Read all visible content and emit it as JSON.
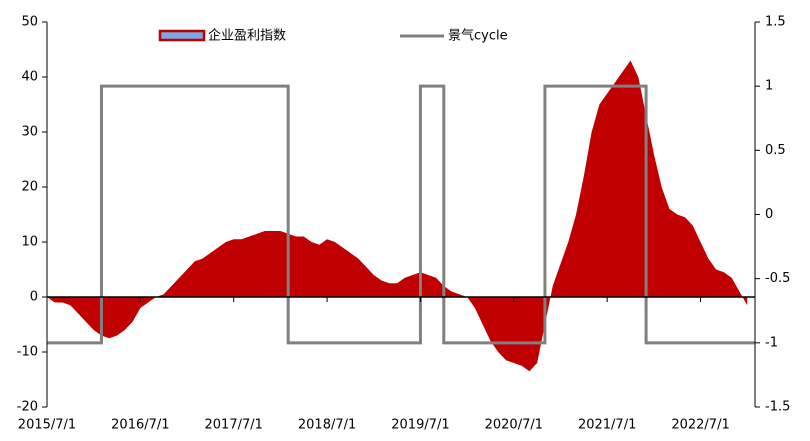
{
  "chart_data": {
    "type": "area_step_combo",
    "ylim": [
      -20,
      50
    ],
    "yticks": [
      -20,
      -10,
      0,
      10,
      20,
      30,
      40,
      50
    ],
    "y2lim": [
      -1.5,
      1.5
    ],
    "y2ticks": [
      -1.5,
      -1,
      -0.5,
      0,
      0.5,
      1,
      1.5
    ],
    "xlim": [
      "2015/7/1",
      "2023/2/1"
    ],
    "xticks": [
      "2015/7/1",
      "2016/7/1",
      "2017/7/1",
      "2018/7/1",
      "2019/7/1",
      "2020/7/1",
      "2021/7/1",
      "2022/7/1"
    ],
    "series": [
      {
        "name": "企业盈利指数",
        "kind": "area",
        "color": "#c00000",
        "x": [
          "2015/7/1",
          "2015/8/1",
          "2015/9/1",
          "2015/10/1",
          "2015/11/1",
          "2015/12/1",
          "2016/1/1",
          "2016/2/1",
          "2016/3/1",
          "2016/4/1",
          "2016/5/1",
          "2016/6/1",
          "2016/7/1",
          "2016/8/1",
          "2016/9/1",
          "2016/10/1",
          "2016/11/1",
          "2016/12/1",
          "2017/1/1",
          "2017/2/1",
          "2017/3/1",
          "2017/4/1",
          "2017/5/1",
          "2017/6/1",
          "2017/7/1",
          "2017/8/1",
          "2017/9/1",
          "2017/10/1",
          "2017/11/1",
          "2017/12/1",
          "2018/1/1",
          "2018/2/1",
          "2018/3/1",
          "2018/4/1",
          "2018/5/1",
          "2018/6/1",
          "2018/7/1",
          "2018/8/1",
          "2018/9/1",
          "2018/10/1",
          "2018/11/1",
          "2018/12/1",
          "2019/1/1",
          "2019/2/1",
          "2019/3/1",
          "2019/4/1",
          "2019/5/1",
          "2019/6/1",
          "2019/7/1",
          "2019/8/1",
          "2019/9/1",
          "2019/10/1",
          "2019/11/1",
          "2019/12/1",
          "2020/1/1",
          "2020/2/1",
          "2020/3/1",
          "2020/4/1",
          "2020/5/1",
          "2020/6/1",
          "2020/7/1",
          "2020/8/1",
          "2020/9/1",
          "2020/10/1",
          "2020/11/1",
          "2020/12/1",
          "2021/1/1",
          "2021/2/1",
          "2021/3/1",
          "2021/4/1",
          "2021/5/1",
          "2021/6/1",
          "2021/7/1",
          "2021/8/1",
          "2021/9/1",
          "2021/10/1",
          "2021/11/1",
          "2021/12/1",
          "2022/1/1",
          "2022/2/1",
          "2022/3/1",
          "2022/4/1",
          "2022/5/1",
          "2022/6/1",
          "2022/7/1",
          "2022/8/1",
          "2022/9/1",
          "2022/10/1",
          "2022/11/1",
          "2022/12/1",
          "2023/1/1"
        ],
        "values": [
          0,
          -1,
          -1,
          -1.5,
          -3,
          -4.5,
          -6,
          -7,
          -7.5,
          -7,
          -6,
          -4.5,
          -2,
          -1,
          0,
          0.5,
          2,
          3.5,
          5,
          6.5,
          7,
          8,
          9,
          10,
          10.5,
          10.5,
          11,
          11.5,
          12,
          12,
          12,
          11.5,
          11,
          11,
          10,
          9.5,
          10.5,
          10,
          9,
          8,
          7,
          5.5,
          4,
          3,
          2.5,
          2.5,
          3.5,
          4,
          4.5,
          4,
          3.5,
          2,
          1,
          0.5,
          0,
          -2,
          -5,
          -8,
          -10,
          -11.5,
          -12,
          -12.5,
          -13.5,
          -12,
          -5,
          2,
          6,
          10,
          15,
          22,
          30,
          35,
          37,
          39,
          41,
          43,
          40,
          33,
          26,
          20,
          16,
          15,
          14.5,
          13,
          10,
          7,
          5,
          4.5,
          3.5,
          1,
          -1.5
        ]
      },
      {
        "name": "景气cycle",
        "kind": "line",
        "axis": "y2",
        "color": "#808080",
        "x": [
          "2015/7/1",
          "2016/2/1",
          "2016/2/1",
          "2018/2/1",
          "2018/2/1",
          "2019/7/1",
          "2019/7/1",
          "2019/10/1",
          "2019/10/1",
          "2020/11/1",
          "2020/11/1",
          "2021/12/1",
          "2021/12/1",
          "2023/2/1"
        ],
        "values": [
          -1,
          -1,
          1,
          1,
          -1,
          -1,
          1,
          1,
          -1,
          -1,
          1,
          1,
          -1,
          -1
        ]
      }
    ]
  }
}
